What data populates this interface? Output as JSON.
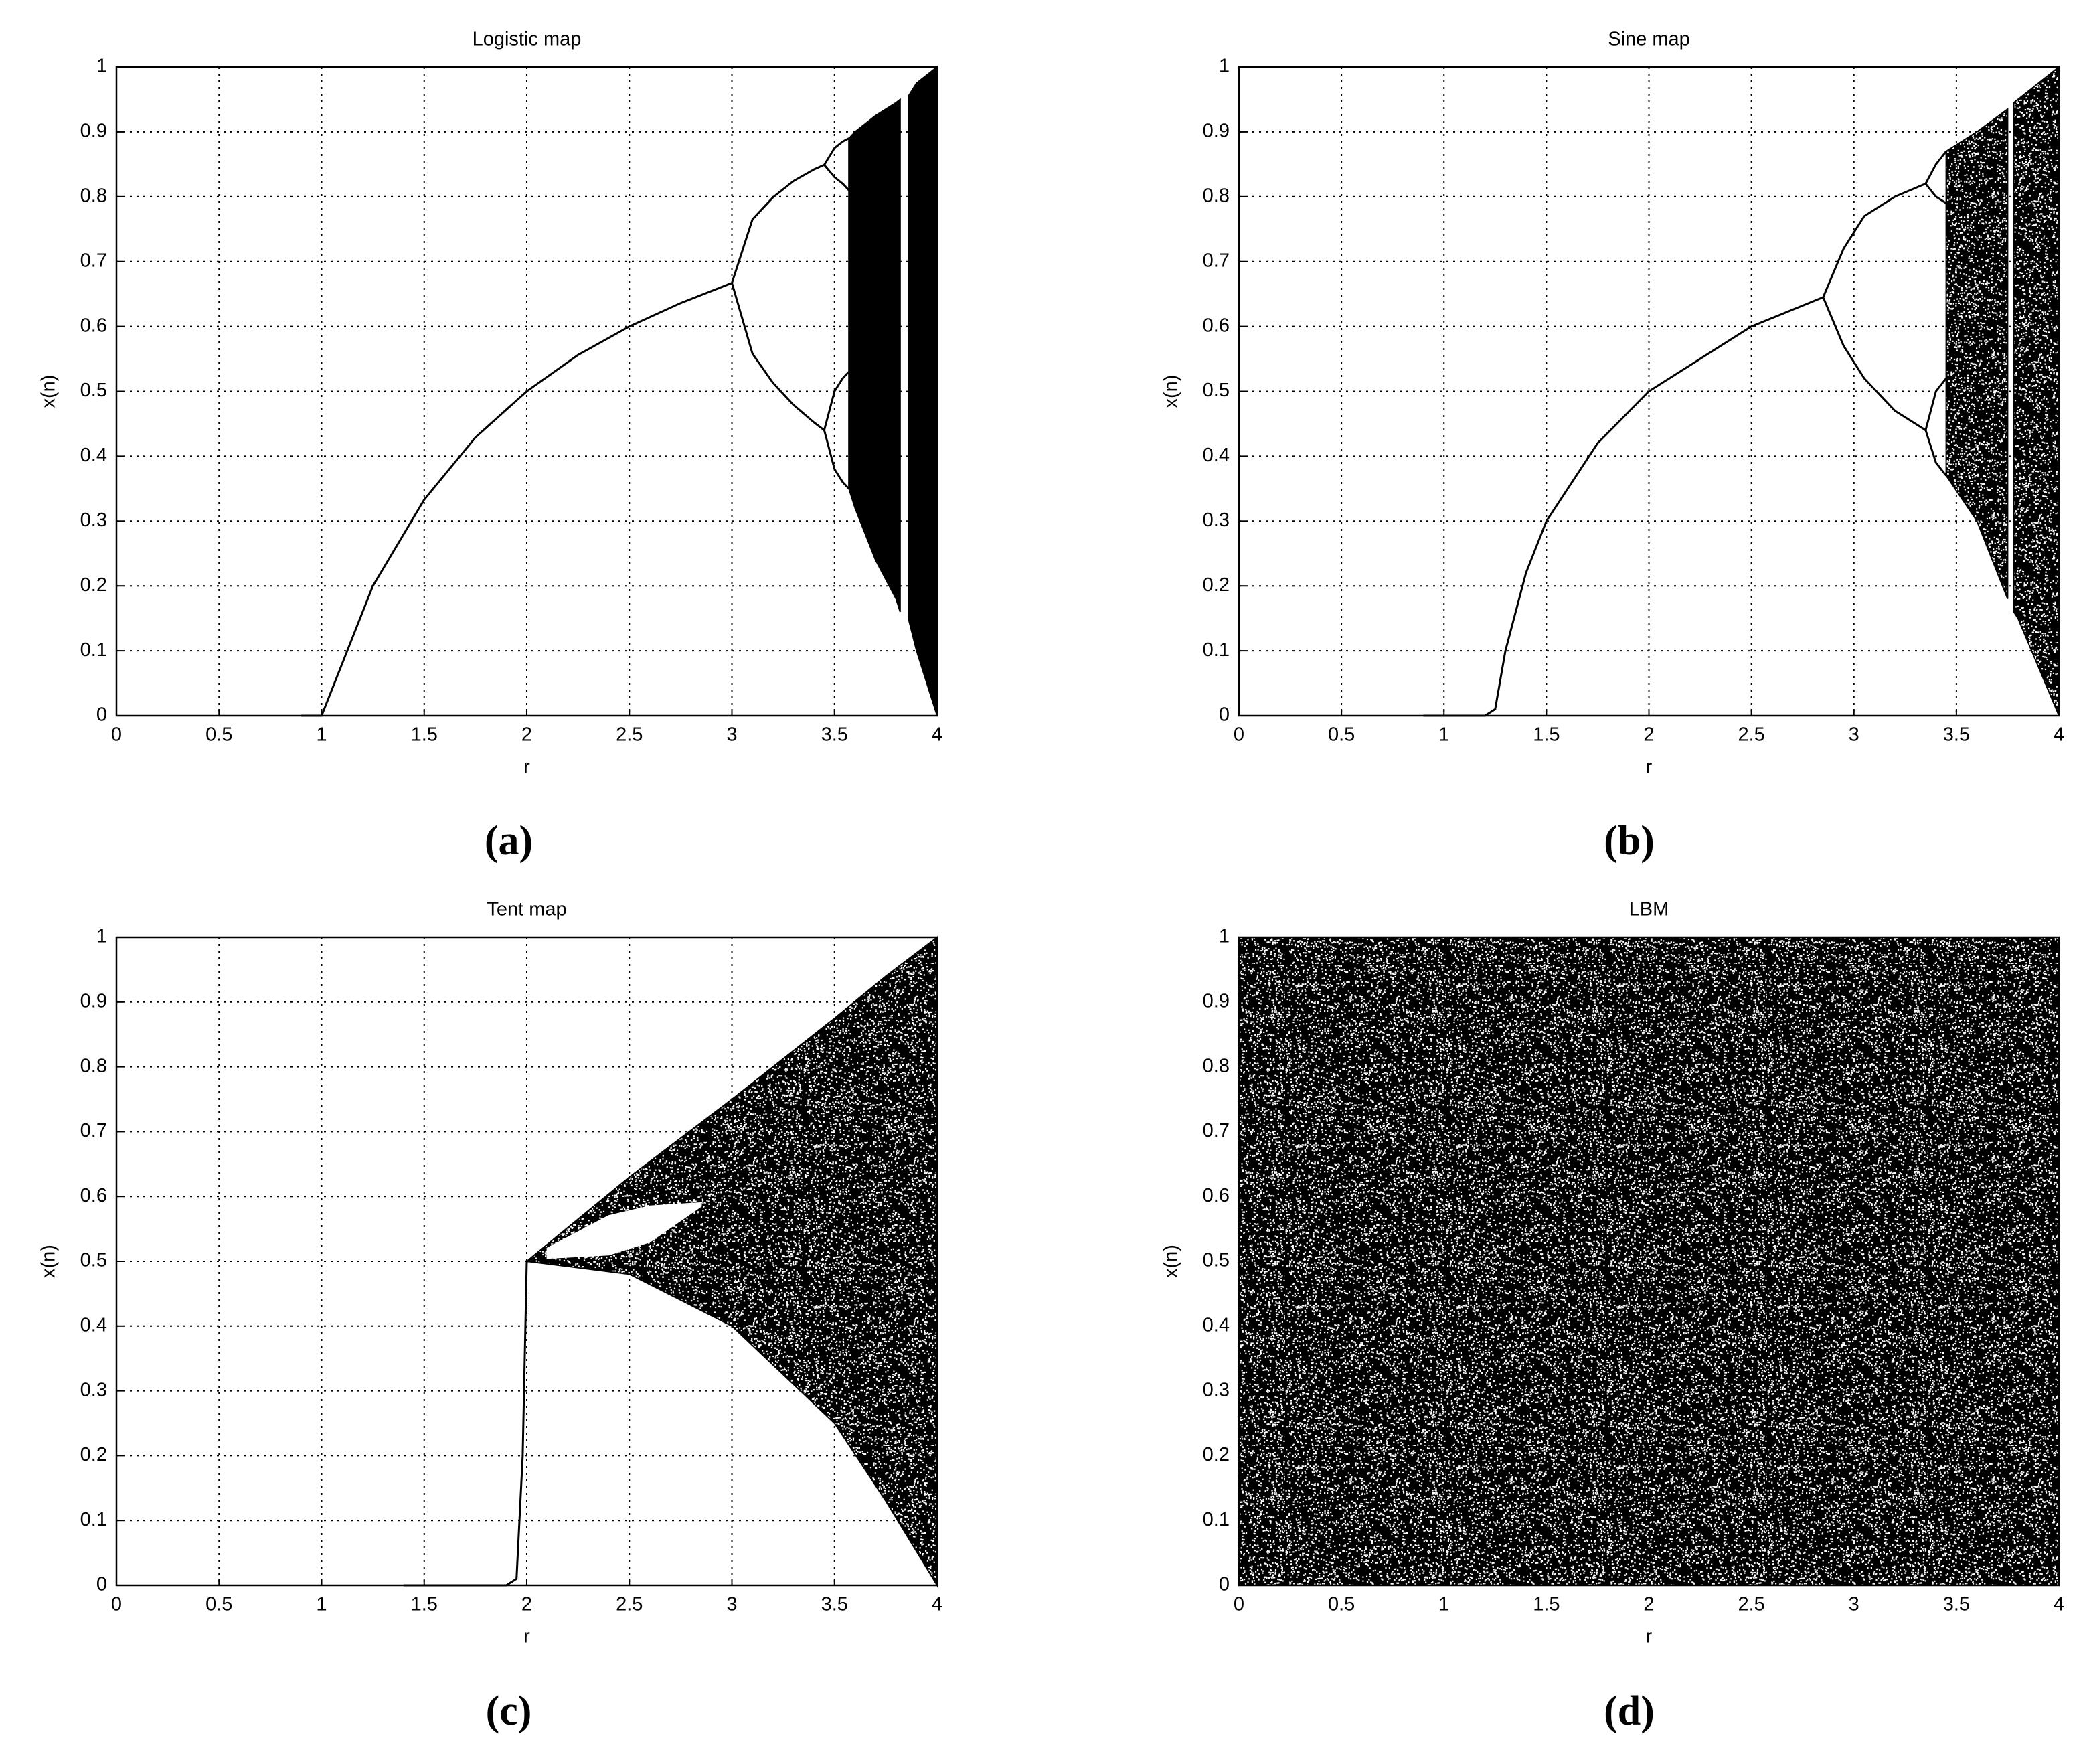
{
  "chart_data": [
    {
      "type": "bifurcation",
      "title": "Logistic map",
      "caption": "(a)",
      "x_label": "r",
      "y_label": "x(n)",
      "xlim": [
        0,
        4
      ],
      "ylim": [
        0,
        1
      ],
      "xticks": [
        0,
        0.5,
        1,
        1.5,
        2,
        2.5,
        3,
        3.5,
        4
      ],
      "yticks": [
        0,
        0.1,
        0.2,
        0.3,
        0.4,
        0.5,
        0.6,
        0.7,
        0.8,
        0.9,
        1
      ],
      "grid": true,
      "texture": "solid",
      "series": [
        {
          "color": "#000000",
          "x": [
            0.9,
            1,
            1.25,
            1.5,
            1.75,
            2,
            2.25,
            2.5,
            2.75,
            3
          ],
          "values": [
            0,
            0,
            0.2,
            0.333,
            0.429,
            0.5,
            0.556,
            0.6,
            0.636,
            0.667
          ]
        },
        {
          "color": "#000000",
          "x": [
            3,
            3.1,
            3.2,
            3.3,
            3.4,
            3.45
          ],
          "values": [
            0.667,
            0.765,
            0.799,
            0.824,
            0.842,
            0.849
          ]
        },
        {
          "color": "#000000",
          "x": [
            3,
            3.1,
            3.2,
            3.3,
            3.4,
            3.45
          ],
          "values": [
            0.667,
            0.558,
            0.513,
            0.479,
            0.452,
            0.44
          ]
        },
        {
          "color": "#000000",
          "x": [
            3.45,
            3.5,
            3.54,
            3.57
          ],
          "values": [
            0.849,
            0.875,
            0.885,
            0.89
          ]
        },
        {
          "color": "#000000",
          "x": [
            3.45,
            3.5,
            3.54,
            3.57
          ],
          "values": [
            0.849,
            0.83,
            0.82,
            0.81
          ]
        },
        {
          "color": "#000000",
          "x": [
            3.45,
            3.5,
            3.54,
            3.57
          ],
          "values": [
            0.44,
            0.5,
            0.52,
            0.53
          ]
        },
        {
          "color": "#000000",
          "x": [
            3.45,
            3.5,
            3.54,
            3.57
          ],
          "values": [
            0.44,
            0.38,
            0.36,
            0.35
          ]
        },
        {
          "color": "#000000",
          "x": [
            3.57,
            3.6,
            3.7,
            3.8,
            3.82,
            3.84,
            3.86,
            3.9,
            4
          ],
          "high": [
            0.89,
            0.9,
            0.925,
            0.945,
            0.95,
            null,
            0.955,
            0.975,
            1
          ],
          "low": [
            0.35,
            0.32,
            0.24,
            0.18,
            0.16,
            null,
            0.15,
            0.1,
            0
          ]
        }
      ]
    },
    {
      "type": "bifurcation",
      "title": "Sine map",
      "caption": "(b)",
      "x_label": "r",
      "y_label": "x(n)",
      "xlim": [
        0,
        4
      ],
      "ylim": [
        0,
        1
      ],
      "xticks": [
        0,
        0.5,
        1,
        1.5,
        2,
        2.5,
        3,
        3.5,
        4
      ],
      "yticks": [
        0,
        0.1,
        0.2,
        0.3,
        0.4,
        0.5,
        0.6,
        0.7,
        0.8,
        0.9,
        1
      ],
      "grid": true,
      "texture": "speckle",
      "series": [
        {
          "color": "#000000",
          "x": [
            0.9,
            1.2,
            1.25,
            1.3,
            1.4,
            1.5,
            1.75,
            2,
            2.25,
            2.5,
            2.85
          ],
          "values": [
            0,
            0,
            0.01,
            0.1,
            0.22,
            0.3,
            0.42,
            0.5,
            0.55,
            0.6,
            0.645
          ]
        },
        {
          "color": "#000000",
          "x": [
            2.85,
            2.95,
            3.05,
            3.2,
            3.35
          ],
          "values": [
            0.645,
            0.72,
            0.77,
            0.8,
            0.82
          ]
        },
        {
          "color": "#000000",
          "x": [
            2.85,
            2.95,
            3.05,
            3.2,
            3.35
          ],
          "values": [
            0.645,
            0.57,
            0.52,
            0.47,
            0.44
          ]
        },
        {
          "color": "#000000",
          "x": [
            3.35,
            3.4,
            3.45
          ],
          "values": [
            0.82,
            0.85,
            0.87
          ]
        },
        {
          "color": "#000000",
          "x": [
            3.35,
            3.4,
            3.45
          ],
          "values": [
            0.82,
            0.8,
            0.79
          ]
        },
        {
          "color": "#000000",
          "x": [
            3.35,
            3.4,
            3.45
          ],
          "values": [
            0.44,
            0.5,
            0.52
          ]
        },
        {
          "color": "#000000",
          "x": [
            3.35,
            3.4,
            3.45
          ],
          "values": [
            0.44,
            0.39,
            0.37
          ]
        },
        {
          "color": "#000000",
          "x": [
            3.45,
            3.6,
            3.75,
            3.76,
            3.78,
            3.8,
            4
          ],
          "high": [
            0.87,
            0.9,
            0.935,
            null,
            0.945,
            0.95,
            1
          ],
          "low": [
            0.37,
            0.3,
            0.18,
            null,
            0.16,
            0.15,
            0
          ]
        }
      ]
    },
    {
      "type": "bifurcation",
      "title": "Tent map",
      "caption": "(c)",
      "x_label": "r",
      "y_label": "x(n)",
      "xlim": [
        0,
        4
      ],
      "ylim": [
        0,
        1
      ],
      "xticks": [
        0,
        0.5,
        1,
        1.5,
        2,
        2.5,
        3,
        3.5,
        4
      ],
      "yticks": [
        0,
        0.1,
        0.2,
        0.3,
        0.4,
        0.5,
        0.6,
        0.7,
        0.8,
        0.9,
        1
      ],
      "grid": true,
      "texture": "speckle",
      "series": [
        {
          "color": "#000000",
          "x": [
            1.4,
            1.9,
            1.95,
            1.98,
            2,
            2.02
          ],
          "values": [
            0,
            0,
            0.01,
            0.2,
            0.5,
            0.5
          ]
        },
        {
          "color": "#000000",
          "x": [
            2,
            2.5,
            3,
            3.5,
            3.75,
            4
          ],
          "high": [
            0.5,
            0.63,
            0.75,
            0.875,
            0.94,
            1
          ],
          "low": [
            0.5,
            0.48,
            0.4,
            0.25,
            0.13,
            0
          ]
        },
        {
          "color": "#ffffff",
          "x": [
            2.1,
            2.4,
            2.6,
            2.85
          ],
          "high": [
            0.52,
            0.57,
            0.585,
            0.59
          ],
          "low": [
            0.505,
            0.51,
            0.53,
            0.585
          ]
        }
      ]
    },
    {
      "type": "bifurcation",
      "title": "LBM",
      "caption": "(d)",
      "x_label": "r",
      "y_label": "x(n)",
      "xlim": [
        0,
        4
      ],
      "ylim": [
        0,
        1
      ],
      "xticks": [
        0,
        0.5,
        1,
        1.5,
        2,
        2.5,
        3,
        3.5,
        4
      ],
      "yticks": [
        0,
        0.1,
        0.2,
        0.3,
        0.4,
        0.5,
        0.6,
        0.7,
        0.8,
        0.9,
        1
      ],
      "grid": true,
      "texture": "speckle",
      "series": [
        {
          "color": "#000000",
          "x": [
            0,
            4
          ],
          "high": [
            1,
            1
          ],
          "low": [
            0,
            0
          ]
        }
      ]
    }
  ]
}
